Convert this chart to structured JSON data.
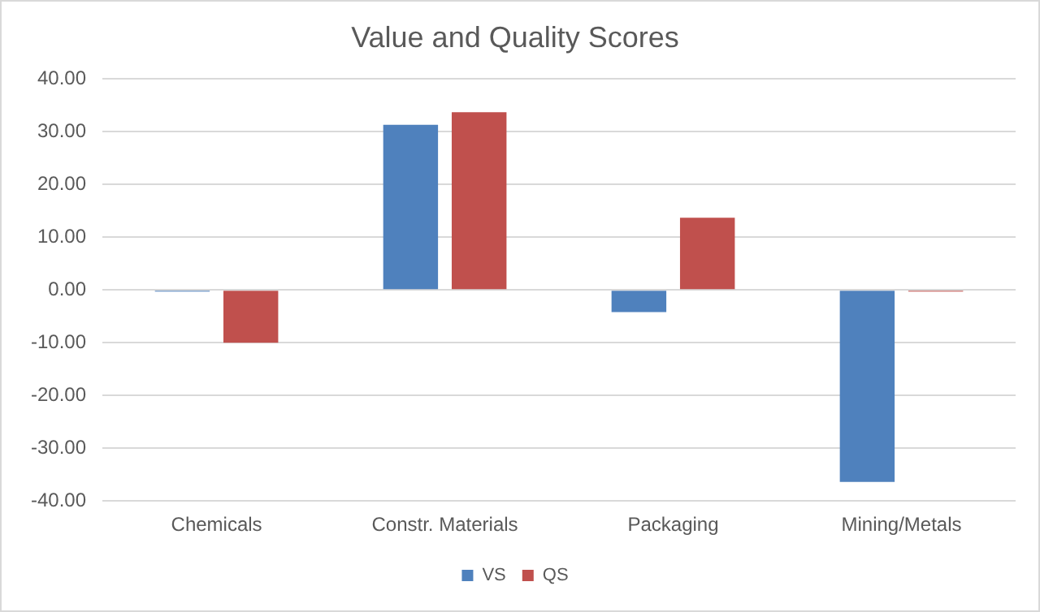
{
  "chart_data": {
    "type": "bar",
    "title": "Value and Quality Scores",
    "categories": [
      "Chemicals",
      "Constr. Materials",
      "Packaging",
      "Mining/Metals"
    ],
    "series": [
      {
        "name": "VS",
        "color": "#4f81bd",
        "values": [
          -0.3,
          31.3,
          -4.2,
          -36.4
        ]
      },
      {
        "name": "QS",
        "color": "#c0504d",
        "values": [
          -10.0,
          33.7,
          13.7,
          -0.3
        ]
      }
    ],
    "ylim": [
      -40,
      40
    ],
    "yticks": [
      {
        "value": -40,
        "label": "-40.00"
      },
      {
        "value": -30,
        "label": "-30.00"
      },
      {
        "value": -20,
        "label": "-20.00"
      },
      {
        "value": -10,
        "label": "-10.00"
      },
      {
        "value": 0,
        "label": "0.00"
      },
      {
        "value": 10,
        "label": "10.00"
      },
      {
        "value": 20,
        "label": "20.00"
      },
      {
        "value": 30,
        "label": "30.00"
      },
      {
        "value": 40,
        "label": "40.00"
      }
    ],
    "grid": "y",
    "legend": "bottom"
  }
}
